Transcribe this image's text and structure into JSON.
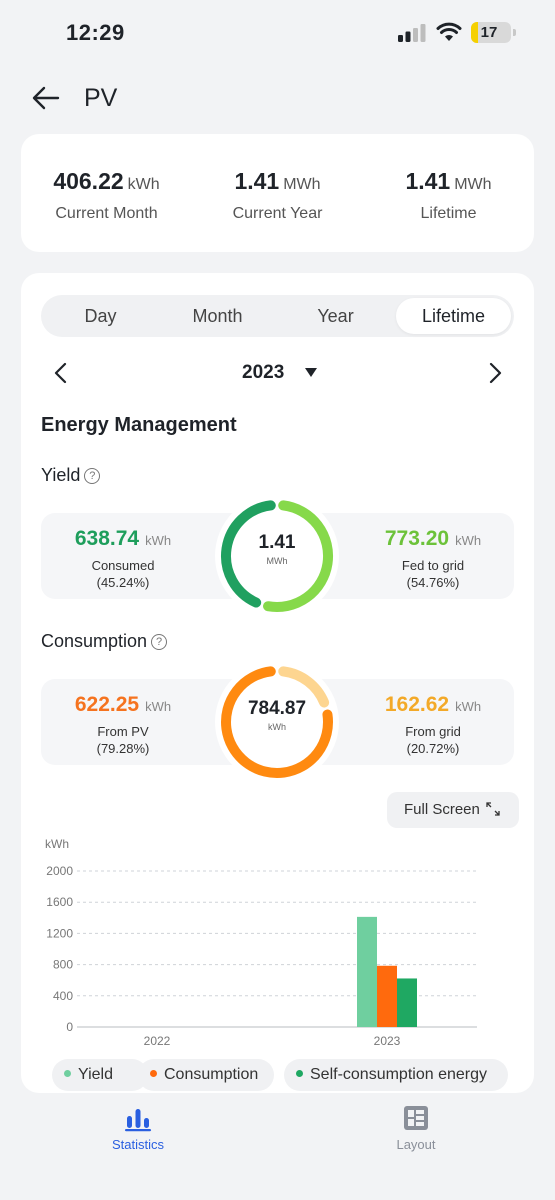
{
  "status": {
    "time": "12:29",
    "battery": "17",
    "battery_level": 0.17
  },
  "header": {
    "title": "PV"
  },
  "summary": [
    {
      "value": "406.22",
      "unit": "kWh",
      "label": "Current Month"
    },
    {
      "value": "1.41",
      "unit": "MWh",
      "label": "Current Year"
    },
    {
      "value": "1.41",
      "unit": "MWh",
      "label": "Lifetime"
    }
  ],
  "tabs": [
    "Day",
    "Month",
    "Year",
    "Lifetime"
  ],
  "active_tab": "Lifetime",
  "date_nav": {
    "year": "2023"
  },
  "section_title": "Energy Management",
  "yield": {
    "title": "Yield",
    "left": {
      "value": "638.74",
      "unit": "kWh",
      "label": "Consumed",
      "pct": "(45.24%)"
    },
    "center": {
      "value": "1.41",
      "unit": "MWh"
    },
    "right": {
      "value": "773.20",
      "unit": "kWh",
      "label": "Fed to grid",
      "pct": "(54.76%)"
    },
    "fraction": 0.4524,
    "colors": {
      "left": "#20a060",
      "right": "#86d94a",
      "left_text": "#1e9e5c",
      "right_text": "#6cc23a"
    }
  },
  "consumption": {
    "title": "Consumption",
    "left": {
      "value": "622.25",
      "unit": "kWh",
      "label": "From PV",
      "pct": "(79.28%)"
    },
    "center": {
      "value": "784.87",
      "unit": "kWh"
    },
    "right": {
      "value": "162.62",
      "unit": "kWh",
      "label": "From grid",
      "pct": "(20.72%)"
    },
    "fraction": 0.7928,
    "colors": {
      "left": "#ff8a10",
      "right": "#fdd590",
      "left_text": "#f5731f",
      "right_text": "#f3a928"
    }
  },
  "fullscreen": {
    "label": "Full Screen"
  },
  "chart_data": {
    "type": "bar",
    "ylabel": "kWh",
    "ylim": [
      0,
      2000
    ],
    "yticks": [
      0,
      400,
      800,
      1200,
      1600,
      2000
    ],
    "categories": [
      "2022",
      "2023"
    ],
    "series": [
      {
        "name": "Yield",
        "color": "#6fcf9f",
        "values": [
          0,
          1411.94
        ]
      },
      {
        "name": "Consumption",
        "color": "#ff6a0d",
        "values": [
          0,
          784.87
        ]
      },
      {
        "name": "Self-consumption energy",
        "color": "#1fa862",
        "values": [
          0,
          622.25
        ]
      }
    ]
  },
  "legend": [
    {
      "label": "Yield",
      "color": "#6fcf9f"
    },
    {
      "label": "Consumption",
      "color": "#ff6a0d"
    },
    {
      "label": "Self-consumption energy",
      "color": "#1fa862"
    }
  ],
  "tabbar": [
    {
      "label": "Statistics",
      "icon": "bar-chart-icon",
      "active": true,
      "color": "#2a5fe0"
    },
    {
      "label": "Layout",
      "icon": "layout-icon",
      "active": false,
      "color": "#8a8f99"
    }
  ]
}
